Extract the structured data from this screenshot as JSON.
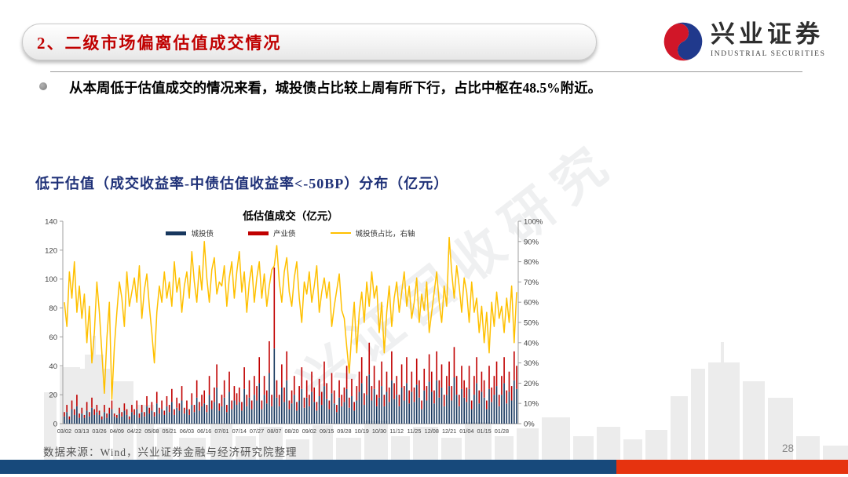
{
  "header": {
    "section_title": "2、二级市场偏离估值成交情况"
  },
  "logo": {
    "cn": "兴业证券",
    "en": "INDUSTRIAL SECURITIES"
  },
  "bullet": {
    "text": "从本周低于估值成交的情况来看，城投债占比较上周有所下行，占比中枢在48.5%附近。"
  },
  "section": {
    "figure_title": "低于估值（成交收益率-中债估值收益率<-50BP）分布（亿元）"
  },
  "watermark": {
    "text": "兴证固收研究"
  },
  "footer": {
    "source": "数据来源：Wind，兴业证券金融与经济研究院整理",
    "page_number": "28"
  },
  "colors": {
    "navy_bar": "#17375E",
    "red_bar": "#C00000",
    "yellow_line": "#FFC000",
    "bottom_navy": "#17497B",
    "bottom_red": "#E6330F",
    "title_blue": "#1F3178",
    "header_red": "#C00000"
  },
  "chart_data": {
    "type": "combo",
    "title": "低估值成交（亿元）",
    "left_axis": {
      "min": 0,
      "max": 140,
      "step": 20
    },
    "right_axis": {
      "min": 0,
      "max": 100,
      "step": 10,
      "format": "percent"
    },
    "grid": false,
    "legend_position": "top",
    "x_tick_labels": [
      "03/02",
      "03/13",
      "03/26",
      "04/09",
      "04/22",
      "05/08",
      "05/21",
      "06/03",
      "06/16",
      "07/01",
      "07/14",
      "07/27",
      "08/07",
      "08/20",
      "09/02",
      "09/15",
      "09/28",
      "10/19",
      "10/30",
      "11/12",
      "11/25",
      "12/08",
      "12/21",
      "01/04",
      "01/15",
      "01/28"
    ],
    "tick_interval": 7,
    "legend": [
      {
        "label": "城投债",
        "color": "#17375E",
        "type": "bar"
      },
      {
        "label": "产业债",
        "color": "#C00000",
        "type": "bar"
      },
      {
        "label": "城投债占比，右轴",
        "color": "#FFC000",
        "type": "line"
      }
    ],
    "series": [
      {
        "name": "城投债",
        "type": "bar",
        "stack": true,
        "axis": "left",
        "color": "#17375E",
        "values": [
          5,
          8,
          3,
          10,
          6,
          12,
          4,
          7,
          4,
          9,
          5,
          11,
          6,
          8,
          6,
          3,
          8,
          4,
          7,
          10,
          5,
          4,
          7,
          5,
          9,
          6,
          3,
          8,
          6,
          10,
          4,
          8,
          5,
          12,
          7,
          9,
          5,
          14,
          7,
          10,
          6,
          12,
          8,
          15,
          6,
          11,
          9,
          16,
          7,
          10,
          6,
          13,
          8,
          18,
          9,
          12,
          14,
          8,
          20,
          10,
          15,
          25,
          9,
          12,
          18,
          8,
          22,
          10,
          16,
          13,
          15,
          9,
          24,
          12,
          18,
          10,
          20,
          16,
          28,
          10,
          20,
          14,
          35,
          12,
          52,
          18,
          12,
          25,
          15,
          30,
          10,
          14,
          20,
          9,
          16,
          24,
          11,
          18,
          12,
          22,
          15,
          9,
          19,
          13,
          26,
          17,
          10,
          21,
          14,
          8,
          18,
          12,
          15,
          24,
          11,
          19,
          9,
          16,
          22,
          28,
          13,
          20,
          34,
          16,
          24,
          12,
          18,
          26,
          12,
          22,
          15,
          30,
          17,
          20,
          12,
          25,
          16,
          28,
          14,
          22,
          15,
          27,
          18,
          10,
          23,
          16,
          29,
          22,
          14,
          30,
          18,
          25,
          12,
          20,
          26,
          16,
          32,
          20,
          12,
          24,
          18,
          15,
          24,
          10,
          20,
          28,
          14,
          22,
          18,
          10,
          24,
          15,
          20,
          26,
          12,
          20,
          28,
          14,
          22,
          16,
          30,
          24
        ]
      },
      {
        "name": "产业债",
        "type": "bar",
        "stack": true,
        "axis": "left",
        "color": "#C00000",
        "values": [
          3,
          5,
          2,
          6,
          4,
          8,
          3,
          4,
          2,
          6,
          3,
          7,
          4,
          5,
          3,
          2,
          5,
          3,
          4,
          6,
          2,
          2,
          4,
          3,
          5,
          4,
          2,
          5,
          4,
          6,
          3,
          5,
          3,
          7,
          4,
          6,
          3,
          8,
          4,
          6,
          3,
          7,
          5,
          9,
          4,
          7,
          5,
          10,
          4,
          6,
          4,
          8,
          5,
          12,
          6,
          8,
          9,
          5,
          13,
          6,
          10,
          16,
          5,
          8,
          12,
          5,
          14,
          6,
          10,
          8,
          10,
          6,
          15,
          8,
          12,
          6,
          13,
          10,
          18,
          6,
          13,
          9,
          22,
          8,
          56,
          12,
          8,
          16,
          10,
          20,
          6,
          9,
          13,
          6,
          10,
          15,
          7,
          12,
          8,
          14,
          10,
          6,
          12,
          9,
          17,
          11,
          6,
          14,
          9,
          5,
          12,
          8,
          10,
          16,
          7,
          12,
          6,
          10,
          14,
          18,
          8,
          13,
          22,
          10,
          16,
          8,
          12,
          17,
          8,
          14,
          10,
          20,
          11,
          13,
          8,
          16,
          10,
          18,
          9,
          14,
          10,
          18,
          12,
          6,
          15,
          10,
          19,
          14,
          9,
          20,
          12,
          16,
          8,
          13,
          17,
          10,
          21,
          13,
          8,
          16,
          12,
          10,
          16,
          6,
          13,
          18,
          9,
          14,
          12,
          6,
          16,
          10,
          13,
          17,
          8,
          13,
          18,
          9,
          14,
          10,
          20,
          16
        ]
      },
      {
        "name": "城投债占比，右轴",
        "type": "line",
        "axis": "right",
        "color": "#FFC000",
        "values": [
          60,
          48,
          75,
          62,
          80,
          55,
          68,
          52,
          64,
          40,
          58,
          30,
          45,
          70,
          55,
          35,
          15,
          42,
          60,
          12,
          38,
          55,
          70,
          62,
          48,
          75,
          58,
          65,
          72,
          60,
          78,
          52,
          66,
          74,
          58,
          45,
          30,
          55,
          68,
          60,
          75,
          62,
          70,
          58,
          80,
          65,
          72,
          55,
          68,
          75,
          62,
          85,
          70,
          60,
          78,
          66,
          90,
          72,
          60,
          76,
          82,
          64,
          70,
          68,
          78,
          58,
          72,
          80,
          62,
          75,
          85,
          65,
          75,
          55,
          70,
          78,
          60,
          72,
          80,
          62,
          74,
          58,
          68,
          76,
          78,
          88,
          70,
          60,
          75,
          82,
          65,
          58,
          72,
          80,
          62,
          50,
          70,
          64,
          75,
          60,
          68,
          78,
          55,
          65,
          72,
          62,
          70,
          48,
          58,
          66,
          74,
          56,
          52,
          38,
          25,
          45,
          60,
          35,
          55,
          65,
          50,
          70,
          58,
          75,
          62,
          68,
          45,
          60,
          35,
          55,
          68,
          48,
          62,
          70,
          55,
          65,
          75,
          58,
          68,
          52,
          60,
          72,
          50,
          64,
          56,
          70,
          45,
          55,
          65,
          75,
          60,
          50,
          68,
          58,
          92,
          75,
          62,
          78,
          68,
          55,
          72,
          65,
          50,
          70,
          55,
          62,
          45,
          58,
          40,
          55,
          35,
          60,
          48,
          65,
          52,
          58,
          45,
          62,
          50,
          68,
          40,
          65
        ]
      }
    ]
  }
}
